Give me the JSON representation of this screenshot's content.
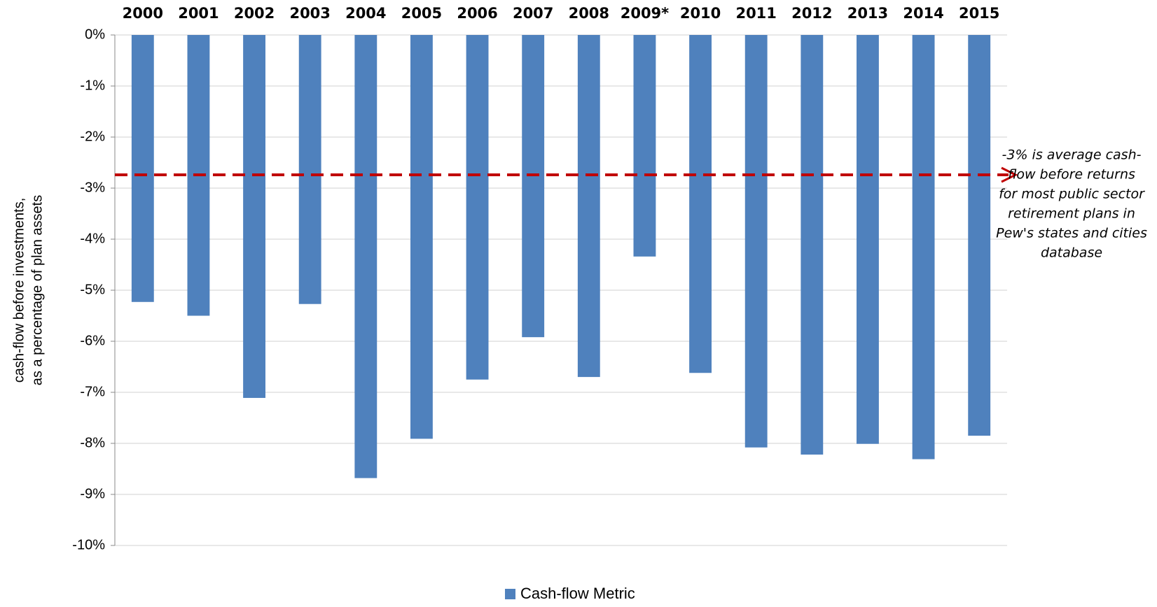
{
  "chart_data": {
    "type": "bar",
    "categories": [
      "2000",
      "2001",
      "2002",
      "2003",
      "2004",
      "2005",
      "2006",
      "2007",
      "2008",
      "2009*",
      "2010",
      "2011",
      "2012",
      "2013",
      "2014",
      "2015"
    ],
    "series": [
      {
        "name": "Cash-flow Metric",
        "color": "#4f81bd",
        "values": [
          -5.23,
          -5.5,
          -7.11,
          -5.27,
          -8.68,
          -7.91,
          -6.75,
          -5.92,
          -6.7,
          -4.34,
          -6.62,
          -8.08,
          -8.22,
          -8.01,
          -8.31,
          -7.85
        ]
      }
    ],
    "ylim": [
      -10,
      0
    ],
    "yticks": [
      {
        "value": 0,
        "label": "0%"
      },
      {
        "value": -1,
        "label": "-1%"
      },
      {
        "value": -2,
        "label": "-2%"
      },
      {
        "value": -3,
        "label": "-3%"
      },
      {
        "value": -4,
        "label": "-4%"
      },
      {
        "value": -5,
        "label": "-5%"
      },
      {
        "value": -6,
        "label": "-6%"
      },
      {
        "value": -7,
        "label": "-7%"
      },
      {
        "value": -8,
        "label": "-8%"
      },
      {
        "value": -9,
        "label": "-9%"
      },
      {
        "value": -10,
        "label": "-10%"
      }
    ],
    "ylabel": [
      "cash-flow before investments,",
      "as a percentage of plan assets"
    ],
    "grid": true,
    "legend": "bottom",
    "reference_line": {
      "value": -2.74,
      "color": "#c00000",
      "label": [
        "-3% is average cash-",
        "flow before returns",
        "for most public sector",
        "retirement plans in",
        "Pew's states and cities",
        "database"
      ]
    }
  }
}
